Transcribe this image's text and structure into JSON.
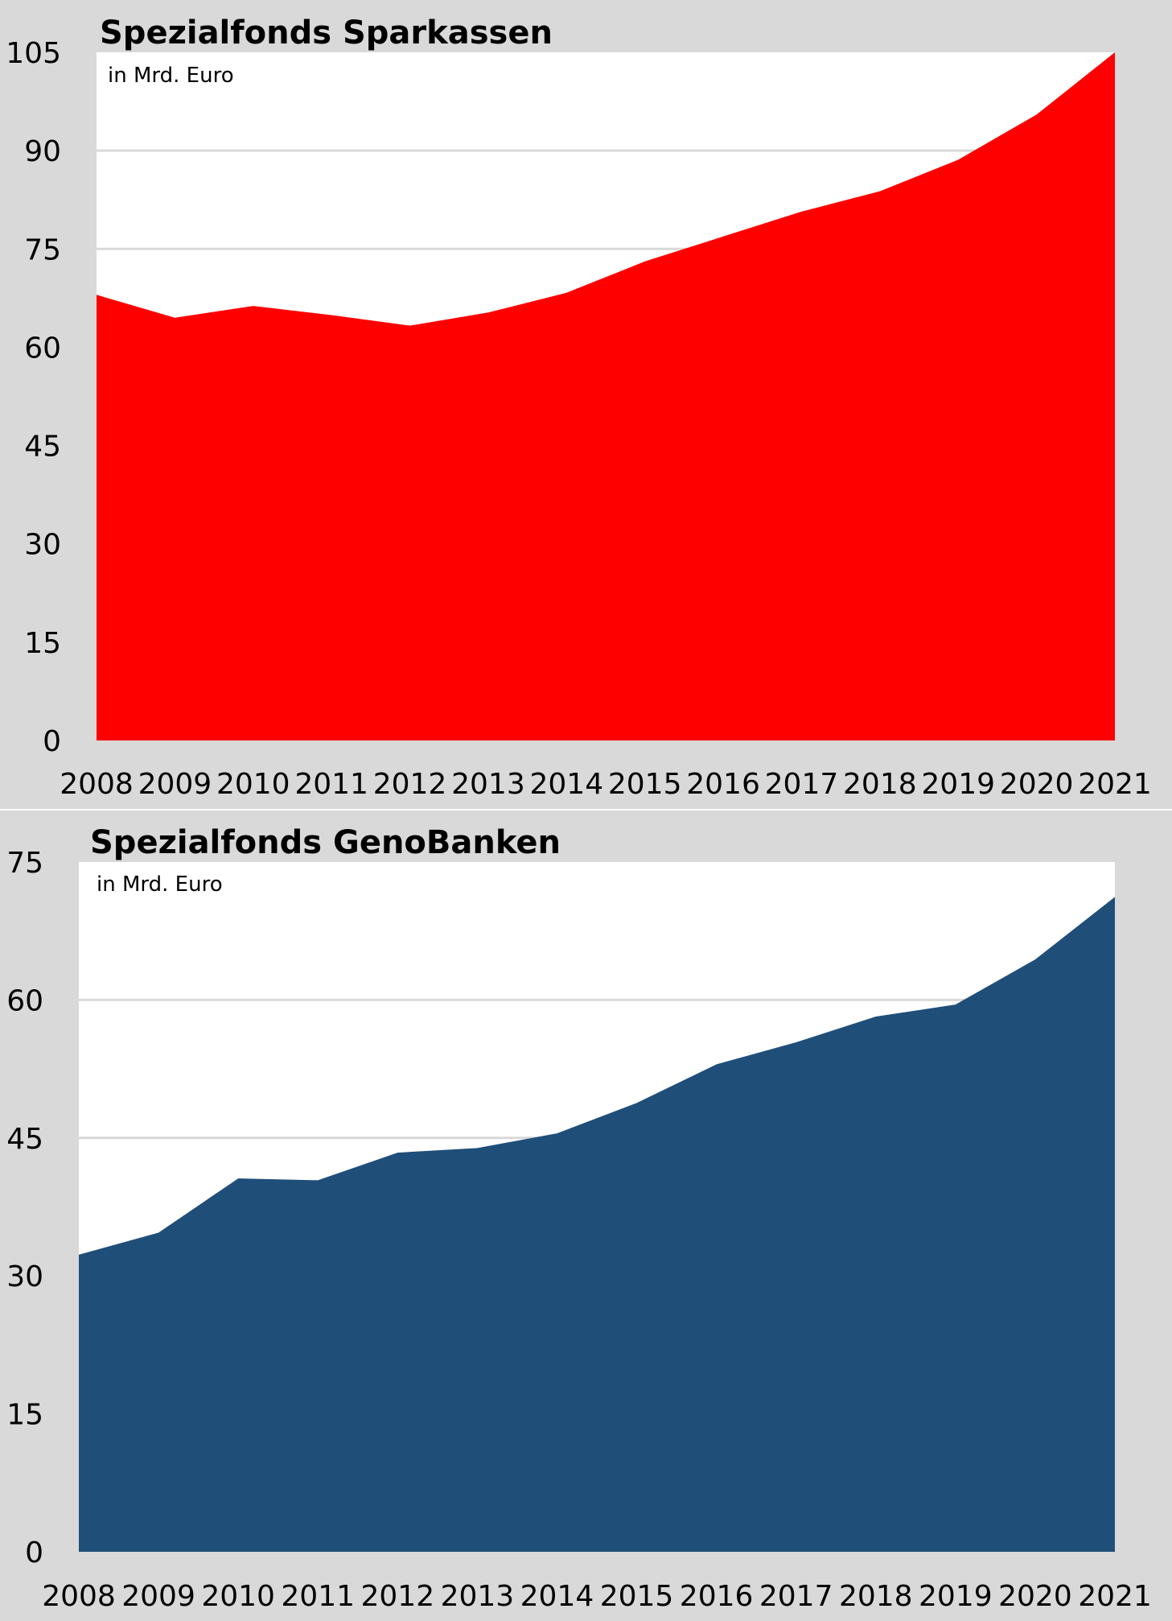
{
  "chart_data": [
    {
      "type": "area",
      "title": "Spezialfonds Sparkassen",
      "subtitle": "in Mrd. Euro",
      "categories": [
        "2008",
        "2009",
        "2010",
        "2011",
        "2012",
        "2013",
        "2014",
        "2015",
        "2016",
        "2017",
        "2018",
        "2019",
        "2020",
        "2021"
      ],
      "series": [
        {
          "values": [
            68.0,
            64.5,
            66.3,
            64.9,
            63.3,
            65.3,
            68.3,
            73.1,
            76.9,
            80.7,
            83.8,
            88.6,
            95.5,
            105.0
          ]
        }
      ],
      "color": "#ff0000",
      "ylim": [
        0,
        105
      ],
      "yticks": [
        "0",
        "15",
        "30",
        "45",
        "60",
        "75",
        "90",
        "105"
      ],
      "grid": true
    },
    {
      "type": "area",
      "title": "Spezialfonds GenoBanken",
      "subtitle": "in Mrd. Euro",
      "categories": [
        "2008",
        "2009",
        "2010",
        "2011",
        "2012",
        "2013",
        "2014",
        "2015",
        "2016",
        "2017",
        "2018",
        "2019",
        "2020",
        "2021"
      ],
      "series": [
        {
          "values": [
            32.3,
            34.7,
            40.6,
            40.4,
            43.4,
            43.9,
            45.5,
            48.8,
            53.0,
            55.4,
            58.2,
            59.5,
            64.4,
            71.2
          ]
        }
      ],
      "color": "#1f4e79",
      "ylim": [
        0,
        75
      ],
      "yticks": [
        "0",
        "15",
        "30",
        "45",
        "60",
        "75"
      ],
      "grid": true
    }
  ]
}
